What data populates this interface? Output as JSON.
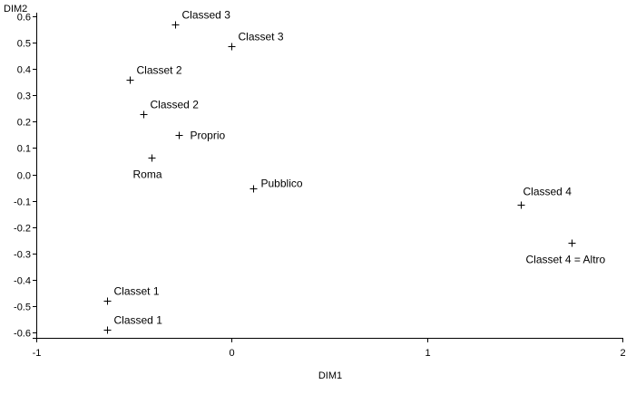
{
  "chart_data": {
    "type": "scatter",
    "title": "",
    "xlabel": "DIM1",
    "ylabel": "DIM2",
    "xlim": [
      -1,
      2
    ],
    "ylim": [
      -0.6,
      0.6
    ],
    "x_ticks": [
      -1,
      0,
      1,
      2
    ],
    "y_ticks": [
      0.6,
      0.5,
      0.4,
      0.3,
      0.2,
      0.1,
      0.0,
      -0.1,
      -0.2,
      -0.3,
      -0.4,
      -0.5,
      -0.6
    ],
    "x_tick_labels": [
      "-1",
      "0",
      "1",
      "2"
    ],
    "y_tick_labels": [
      "0.6",
      "0.5",
      "0.4",
      "0.3",
      "0.2",
      "0.1",
      "0.0",
      "-0.1",
      "-0.2",
      "-0.3",
      "-0.4",
      "-0.5",
      "-0.6"
    ],
    "grid": false,
    "marker": "+",
    "points": [
      {
        "label": "Classed 3",
        "x": -0.29,
        "y": 0.57,
        "label_pos": "above-right"
      },
      {
        "label": "Classet 3",
        "x": 0.0,
        "y": 0.485,
        "label_pos": "above-right"
      },
      {
        "label": "Classet 2",
        "x": -0.52,
        "y": 0.36,
        "label_pos": "above-right"
      },
      {
        "label": "Classed 2",
        "x": -0.45,
        "y": 0.23,
        "label_pos": "above-right"
      },
      {
        "label": "Proprio",
        "x": -0.27,
        "y": 0.15,
        "label_pos": "right"
      },
      {
        "label": "Roma",
        "x": -0.41,
        "y": 0.065,
        "label_pos": "below-left"
      },
      {
        "label": "Pubblico",
        "x": 0.11,
        "y": -0.055,
        "label_pos": "right-up"
      },
      {
        "label": "Classed 4",
        "x": 1.48,
        "y": -0.115,
        "label_pos": "above"
      },
      {
        "label": "Classet 4 = Altro",
        "x": 1.74,
        "y": -0.26,
        "label_pos": "below-left"
      },
      {
        "label": "Classet 1",
        "x": -0.64,
        "y": -0.48,
        "label_pos": "above-right"
      },
      {
        "label": "Classed 1",
        "x": -0.64,
        "y": -0.59,
        "label_pos": "above-right"
      }
    ]
  }
}
